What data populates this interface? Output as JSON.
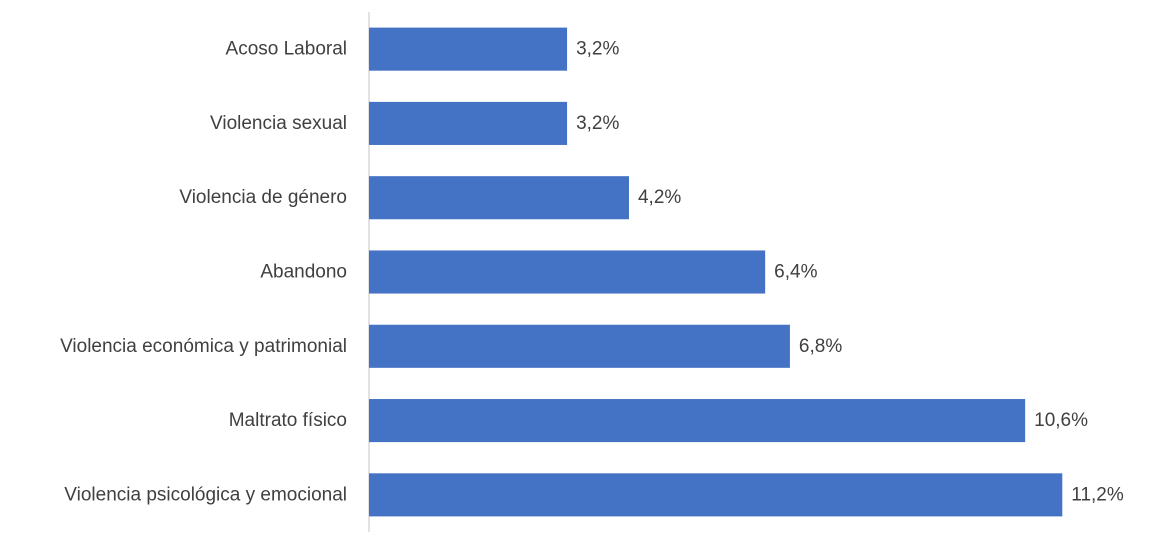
{
  "chart_data": {
    "type": "bar",
    "orientation": "horizontal",
    "title": "",
    "xlabel": "",
    "ylabel": "",
    "categories": [
      "Acoso Laboral",
      "Violencia sexual",
      "Violencia de género",
      "Abandono",
      "Violencia económica y patrimonial",
      "Maltrato físico",
      "Violencia psicológica y emocional"
    ],
    "values": [
      3.2,
      3.2,
      4.2,
      6.4,
      6.8,
      10.6,
      11.2
    ],
    "value_labels": [
      "3,2%",
      "3,2%",
      "4,2%",
      "6,4%",
      "6,8%",
      "10,6%",
      "11,2%"
    ],
    "xlim": [
      0,
      12.1
    ],
    "grid": false,
    "legend": "none",
    "colors": {
      "bar": "#4472C4",
      "axis": "#D9D9D9",
      "text": "#404040"
    }
  }
}
